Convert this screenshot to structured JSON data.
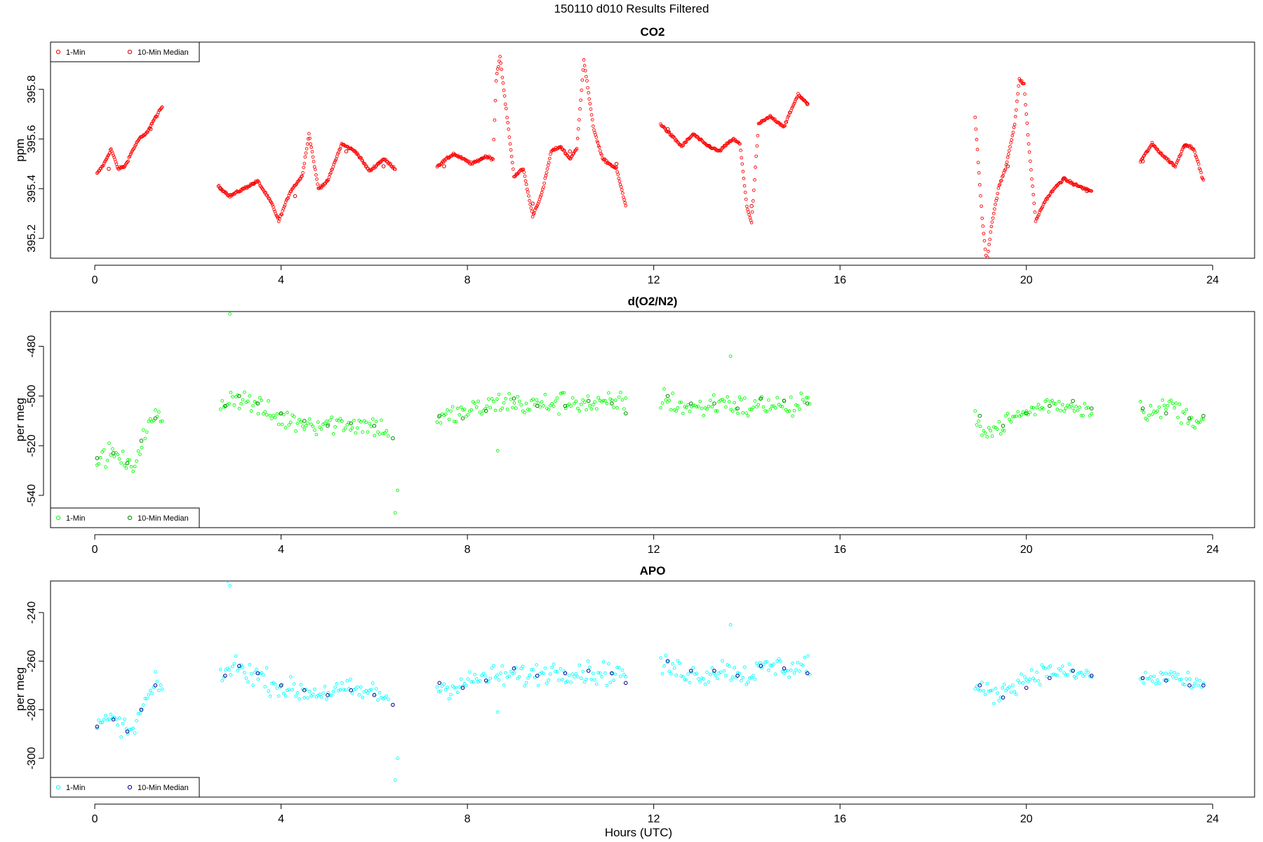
{
  "figure": {
    "title": "150110   d010   Results Filtered",
    "xlabel": "Hours (UTC)"
  },
  "chart_data": [
    {
      "type": "scatter",
      "title": "CO2",
      "ylabel": "ppm",
      "xlim": [
        -0.95,
        24.9
      ],
      "ylim": [
        395.12,
        395.99
      ],
      "x_ticks": [
        0,
        4,
        8,
        12,
        16,
        20,
        24
      ],
      "y_ticks": [
        395.2,
        395.4,
        395.6,
        395.8
      ],
      "y_tick_labels": [
        "395.2",
        "395.4",
        "395.6",
        "395.8"
      ],
      "legend": {
        "position": "top-left",
        "entries": [
          "1-Min",
          "10-Min Median"
        ]
      },
      "colors": {
        "one_min": "#ff0000",
        "median": "#cc0000"
      },
      "segments": [
        {
          "x": [
            0.05,
            0.2,
            0.35,
            0.5,
            0.65,
            0.8,
            0.95,
            1.1,
            1.25,
            1.45
          ],
          "y": [
            395.46,
            395.5,
            395.56,
            395.48,
            395.49,
            395.55,
            395.6,
            395.62,
            395.67,
            395.73
          ]
        },
        {
          "x": [
            2.65,
            2.9,
            3.2,
            3.5,
            3.8,
            3.95,
            4.2,
            4.45,
            4.6,
            4.8,
            5.0,
            5.3,
            5.6,
            5.9,
            6.2,
            6.45
          ],
          "y": [
            395.41,
            395.37,
            395.4,
            395.43,
            395.34,
            395.27,
            395.39,
            395.45,
            395.62,
            395.4,
            395.43,
            395.58,
            395.55,
            395.47,
            395.52,
            395.48
          ]
        },
        {
          "x": [
            7.35,
            7.7,
            8.1,
            8.4,
            8.55,
            8.62,
            8.7,
            9.0,
            9.2,
            9.4,
            9.6,
            9.8,
            10.0,
            10.2,
            10.35,
            10.5,
            10.7,
            10.9,
            11.2,
            11.4
          ],
          "y": [
            395.49,
            395.54,
            395.5,
            395.53,
            395.52,
            395.85,
            395.93,
            395.45,
            395.48,
            395.29,
            395.38,
            395.55,
            395.57,
            395.52,
            395.56,
            395.92,
            395.65,
            395.52,
            395.48,
            395.33
          ]
        },
        {
          "x": [
            12.15,
            12.35,
            12.6,
            12.85,
            13.1,
            13.4,
            13.7,
            13.85,
            14.0,
            14.1,
            14.25,
            14.5,
            14.8,
            15.1,
            15.3
          ],
          "y": [
            395.66,
            395.62,
            395.57,
            395.62,
            395.58,
            395.55,
            395.6,
            395.58,
            395.33,
            395.26,
            395.66,
            395.69,
            395.65,
            395.78,
            395.74
          ]
        },
        {
          "x": [
            18.9,
            19.05,
            19.15,
            19.25,
            19.4,
            19.55,
            19.75,
            19.85,
            19.95,
            20.05,
            20.2,
            20.4,
            20.6,
            20.8,
            21.0,
            21.25,
            21.4
          ],
          "y": [
            395.69,
            395.28,
            395.1,
            395.25,
            395.4,
            395.48,
            395.66,
            395.84,
            395.82,
            395.58,
            395.27,
            395.35,
            395.4,
            395.44,
            395.42,
            395.4,
            395.39
          ]
        },
        {
          "x": [
            22.45,
            22.7,
            22.95,
            23.2,
            23.4,
            23.6,
            23.8
          ],
          "y": [
            395.51,
            395.58,
            395.53,
            395.49,
            395.58,
            395.56,
            395.43
          ]
        }
      ],
      "median": {
        "x": [
          0.3,
          1.2,
          2.7,
          3.4,
          4.3,
          5.4,
          6.2,
          7.5,
          8.3,
          9.4,
          10.2,
          11.2,
          12.3,
          13.2,
          14.1,
          15.3,
          19.6,
          20.8,
          21.3,
          22.5,
          23.4
        ],
        "y": [
          395.48,
          395.64,
          395.4,
          395.42,
          395.37,
          395.55,
          395.49,
          395.49,
          395.52,
          395.34,
          395.55,
          395.5,
          395.64,
          395.57,
          395.33,
          395.74,
          395.49,
          395.44,
          395.39,
          395.51,
          395.57
        ]
      }
    },
    {
      "type": "scatter",
      "title": "d(O2/N2)",
      "ylabel": "per meg",
      "xlim": [
        -0.95,
        24.9
      ],
      "ylim": [
        -553.0,
        -466.0
      ],
      "x_ticks": [
        0,
        4,
        8,
        12,
        16,
        20,
        24
      ],
      "y_ticks": [
        -540,
        -520,
        -500,
        -480
      ],
      "y_tick_labels": [
        "-540",
        "-520",
        "-500",
        "-480"
      ],
      "legend": {
        "position": "bottom-left",
        "entries": [
          "1-Min",
          "10-Min Median"
        ]
      },
      "colors": {
        "one_min": "#00ff00",
        "median": "#008800"
      },
      "segments": [
        {
          "x": [
            0.05,
            0.3,
            0.55,
            0.8,
            1.05,
            1.3,
            1.45
          ],
          "y": [
            -526,
            -523,
            -525,
            -530,
            -516,
            -508,
            -510
          ],
          "spread": 5
        },
        {
          "x": [
            2.7,
            3.0,
            3.4,
            3.8,
            4.2,
            4.8,
            5.4,
            6.0,
            6.3
          ],
          "y": [
            -503,
            -500,
            -503,
            -508,
            -510,
            -511,
            -511,
            -512,
            -514
          ],
          "spread": 6
        },
        {
          "x": [
            7.35,
            7.8,
            8.3,
            8.8,
            9.3,
            9.8,
            10.3,
            10.8,
            11.4
          ],
          "y": [
            -510,
            -507,
            -505,
            -502,
            -504,
            -503,
            -502,
            -504,
            -502
          ],
          "spread": 6
        },
        {
          "x": [
            12.15,
            12.6,
            13.0,
            13.5,
            14.0,
            14.5,
            15.0,
            15.35
          ],
          "y": [
            -501,
            -504,
            -505,
            -502,
            -505,
            -503,
            -505,
            -502
          ],
          "spread": 6
        },
        {
          "x": [
            18.9,
            19.3,
            19.7,
            20.1,
            20.5,
            20.9,
            21.4
          ],
          "y": [
            -511,
            -514,
            -509,
            -506,
            -503,
            -504,
            -505
          ],
          "spread": 5
        },
        {
          "x": [
            22.45,
            22.8,
            23.1,
            23.4,
            23.8
          ],
          "y": [
            -505,
            -507,
            -503,
            -508,
            -510
          ],
          "spread": 5
        }
      ],
      "outliers": {
        "x": [
          2.85,
          2.9,
          6.45,
          6.5,
          13.65,
          8.65
        ],
        "y": [
          -464,
          -467,
          -547,
          -538,
          -484,
          -522
        ]
      },
      "median": {
        "x": [
          0.05,
          0.4,
          0.7,
          1.0,
          1.3,
          2.8,
          3.1,
          3.5,
          4.0,
          4.5,
          5.0,
          5.5,
          6.0,
          6.4,
          7.4,
          7.9,
          8.4,
          9.0,
          9.5,
          10.1,
          10.6,
          11.1,
          11.4,
          12.3,
          12.8,
          13.3,
          13.8,
          14.3,
          14.8,
          15.3,
          19.0,
          19.5,
          20.0,
          20.5,
          21.0,
          21.4,
          22.5,
          23.0,
          23.5,
          23.8
        ],
        "y": [
          -525,
          -523,
          -527,
          -518,
          -509,
          -504,
          -500,
          -503,
          -507,
          -510,
          -512,
          -511,
          -512,
          -517,
          -508,
          -509,
          -506,
          -501,
          -504,
          -504,
          -502,
          -503,
          -507,
          -500,
          -503,
          -503,
          -505,
          -501,
          -502,
          -503,
          -508,
          -512,
          -507,
          -504,
          -502,
          -505,
          -505,
          -507,
          -509,
          -508
        ]
      }
    },
    {
      "type": "scatter",
      "title": "APO",
      "ylabel": "per meg",
      "xlim": [
        -0.95,
        24.9
      ],
      "ylim": [
        -316.0,
        -227.0
      ],
      "x_ticks": [
        0,
        4,
        8,
        12,
        16,
        20,
        24
      ],
      "y_ticks": [
        -300,
        -280,
        -260,
        -240
      ],
      "y_tick_labels": [
        "-300",
        "-280",
        "-260",
        "-240"
      ],
      "legend": {
        "position": "bottom-left",
        "entries": [
          "1-Min",
          "10-Min Median"
        ]
      },
      "colors": {
        "one_min": "#00ffff",
        "median": "#000088"
      },
      "segments": [
        {
          "x": [
            0.05,
            0.3,
            0.55,
            0.8,
            1.05,
            1.3,
            1.45
          ],
          "y": [
            -287,
            -284,
            -286,
            -290,
            -278,
            -270,
            -271
          ],
          "spread": 5
        },
        {
          "x": [
            2.7,
            3.0,
            3.4,
            3.8,
            4.2,
            4.8,
            5.4,
            6.0,
            6.3
          ],
          "y": [
            -266,
            -262,
            -265,
            -269,
            -272,
            -273,
            -272,
            -273,
            -275
          ],
          "spread": 6
        },
        {
          "x": [
            7.35,
            7.8,
            8.3,
            8.8,
            9.3,
            9.8,
            10.3,
            10.8,
            11.4
          ],
          "y": [
            -271,
            -270,
            -267,
            -266,
            -266,
            -264,
            -264,
            -265,
            -265
          ],
          "spread": 6
        },
        {
          "x": [
            12.15,
            12.6,
            13.0,
            13.5,
            14.0,
            14.5,
            15.0,
            15.35
          ],
          "y": [
            -262,
            -264,
            -266,
            -263,
            -266,
            -262,
            -263,
            -261
          ],
          "spread": 6
        },
        {
          "x": [
            18.9,
            19.3,
            19.7,
            20.1,
            20.5,
            20.9,
            21.4
          ],
          "y": [
            -271,
            -274,
            -270,
            -266,
            -264,
            -265,
            -266
          ],
          "spread": 5
        },
        {
          "x": [
            22.45,
            22.8,
            23.1,
            23.4,
            23.8
          ],
          "y": [
            -267,
            -268,
            -265,
            -269,
            -271
          ],
          "spread": 5
        }
      ],
      "outliers": {
        "x": [
          2.85,
          2.9,
          6.45,
          6.5,
          13.65,
          8.65
        ],
        "y": [
          -227,
          -229,
          -309,
          -300,
          -245,
          -281
        ]
      },
      "median": {
        "x": [
          0.05,
          0.4,
          0.7,
          1.0,
          1.3,
          2.8,
          3.1,
          3.5,
          4.0,
          4.5,
          5.0,
          5.5,
          6.0,
          6.4,
          7.4,
          7.9,
          8.4,
          9.0,
          9.5,
          10.1,
          10.6,
          11.1,
          11.4,
          12.3,
          12.8,
          13.3,
          13.8,
          14.3,
          14.8,
          15.3,
          19.0,
          19.5,
          20.0,
          20.5,
          21.0,
          21.4,
          22.5,
          23.0,
          23.5,
          23.8
        ],
        "y": [
          -287,
          -284,
          -289,
          -280,
          -270,
          -266,
          -262,
          -265,
          -270,
          -272,
          -274,
          -272,
          -274,
          -278,
          -269,
          -271,
          -268,
          -263,
          -266,
          -265,
          -264,
          -265,
          -269,
          -260,
          -264,
          -264,
          -266,
          -262,
          -263,
          -265,
          -270,
          -275,
          -271,
          -267,
          -264,
          -266,
          -267,
          -268,
          -270,
          -270
        ]
      }
    }
  ]
}
